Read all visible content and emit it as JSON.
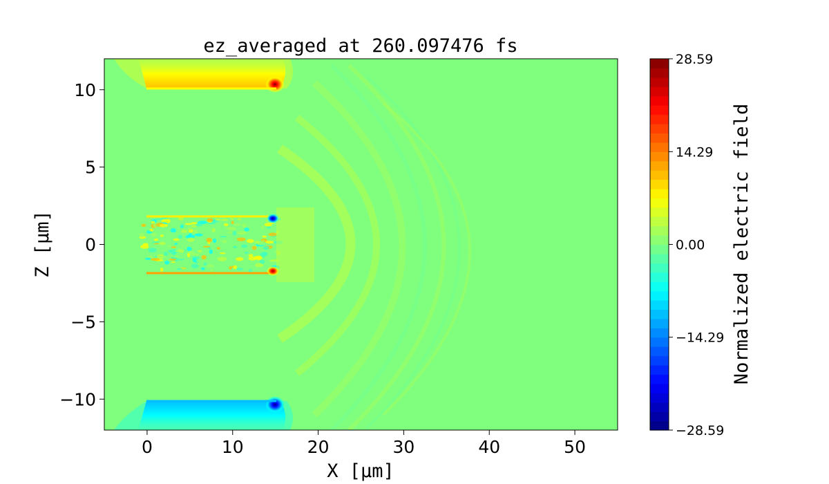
{
  "chart_data": {
    "type": "heatmap",
    "title": "ez_averaged at 260.097476 fs",
    "xlabel": "X [μm]",
    "ylabel": "Z [μm]",
    "xlim": [
      -5,
      55
    ],
    "ylim": [
      -12,
      12
    ],
    "x_ticks": [
      0,
      10,
      20,
      30,
      40,
      50
    ],
    "x_tick_labels": [
      "0",
      "10",
      "20",
      "30",
      "40",
      "50"
    ],
    "y_ticks": [
      -10,
      -5,
      0,
      5,
      10
    ],
    "y_tick_labels": [
      "−10",
      "−5",
      "0",
      "5",
      "10"
    ],
    "colorbar": {
      "label": "Normalized electric field",
      "min": -28.59,
      "max": 28.59,
      "ticks": [
        -28.59,
        -14.29,
        0.0,
        14.29,
        28.59
      ],
      "tick_labels": [
        "−28.59",
        "−14.29",
        "0.00",
        "14.29",
        "28.59"
      ],
      "colormap": "jet",
      "levels": 40
    },
    "features": [
      {
        "kind": "plate_edge",
        "x_range": [
          0,
          15
        ],
        "z": 10,
        "sign": "positive"
      },
      {
        "kind": "plate_edge",
        "x_range": [
          0,
          15
        ],
        "z": -10,
        "sign": "negative"
      },
      {
        "kind": "channel_wall",
        "x_range": [
          0,
          15
        ],
        "z": 1.8,
        "sign": "mixed"
      },
      {
        "kind": "channel_wall",
        "x_range": [
          0,
          15
        ],
        "z": -1.8,
        "sign": "mixed"
      },
      {
        "kind": "hotspot",
        "x": 15,
        "z": 10,
        "value": 28.5
      },
      {
        "kind": "hotspot",
        "x": 15,
        "z": -10,
        "value": -24
      },
      {
        "kind": "hotspot",
        "x": 15,
        "z": 1.7,
        "value": -22
      },
      {
        "kind": "hotspot",
        "x": 15,
        "z": -1.7,
        "value": 26
      },
      {
        "kind": "wave_front",
        "x_range": [
          15,
          33
        ],
        "z_range": [
          -12,
          12
        ],
        "value": 2
      }
    ]
  },
  "colors": {
    "jet_stops": [
      "#00007f",
      "#0000ff",
      "#007fff",
      "#00ffff",
      "#7fff7f",
      "#ffff00",
      "#ff7f00",
      "#ff0000",
      "#7f0000"
    ],
    "background_field": "#80ff7f",
    "frame": "#000000"
  }
}
